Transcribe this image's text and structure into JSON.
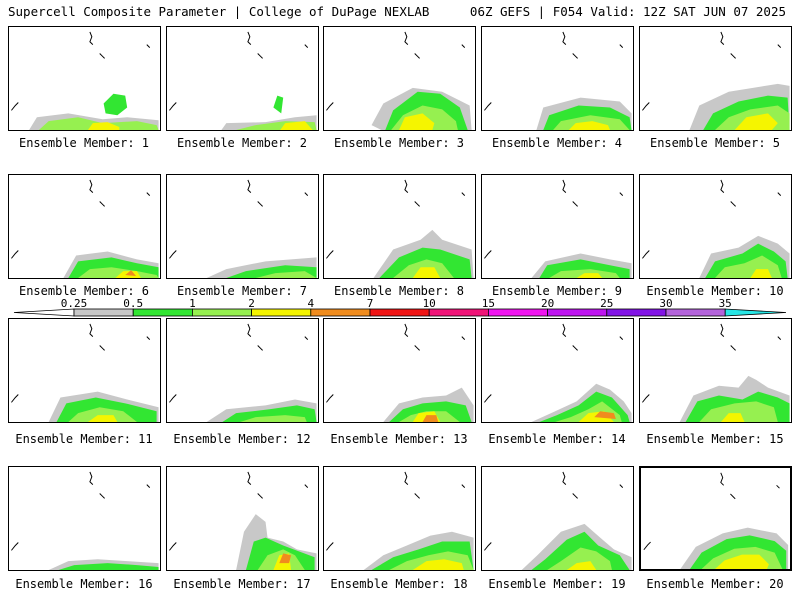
{
  "header": {
    "left": "Supercell Composite Parameter | College of DuPage NEXLAB",
    "right": "06Z GEFS | F054 Valid: 12Z SAT JUN 07 2025"
  },
  "members": [
    {
      "label": "Ensemble Member: 1",
      "selected": false
    },
    {
      "label": "Ensemble Member: 2",
      "selected": false
    },
    {
      "label": "Ensemble Member: 3",
      "selected": false
    },
    {
      "label": "Ensemble Member: 4",
      "selected": false
    },
    {
      "label": "Ensemble Member: 5",
      "selected": false
    },
    {
      "label": "Ensemble Member: 6",
      "selected": false
    },
    {
      "label": "Ensemble Member: 7",
      "selected": false
    },
    {
      "label": "Ensemble Member: 8",
      "selected": false
    },
    {
      "label": "Ensemble Member: 9",
      "selected": false
    },
    {
      "label": "Ensemble Member: 10",
      "selected": false
    },
    {
      "label": "Ensemble Member: 11",
      "selected": false
    },
    {
      "label": "Ensemble Member: 12",
      "selected": false
    },
    {
      "label": "Ensemble Member: 13",
      "selected": false
    },
    {
      "label": "Ensemble Member: 14",
      "selected": false
    },
    {
      "label": "Ensemble Member: 15",
      "selected": false
    },
    {
      "label": "Ensemble Member: 16",
      "selected": false
    },
    {
      "label": "Ensemble Member: 17",
      "selected": false
    },
    {
      "label": "Ensemble Member: 18",
      "selected": false
    },
    {
      "label": "Ensemble Member: 19",
      "selected": false
    },
    {
      "label": "Ensemble Member: 20",
      "selected": true
    }
  ],
  "colorbar": {
    "levels": [
      "0.25",
      "0.5",
      "1",
      "2",
      "4",
      "7",
      "10",
      "15",
      "20",
      "25",
      "30",
      "35"
    ],
    "colors": [
      "#ffffff",
      "#c8c8c8",
      "#32e632",
      "#96f050",
      "#f5f500",
      "#f08c1e",
      "#f01414",
      "#f01478",
      "#f014f0",
      "#be14f0",
      "#8214e6",
      "#b464dc",
      "#28e6e6"
    ]
  },
  "palette": {
    "gray": "#c8c8c8",
    "green": "#32e632",
    "lime": "#96f050",
    "yellow": "#f5f500",
    "orange": "#f08c1e"
  }
}
